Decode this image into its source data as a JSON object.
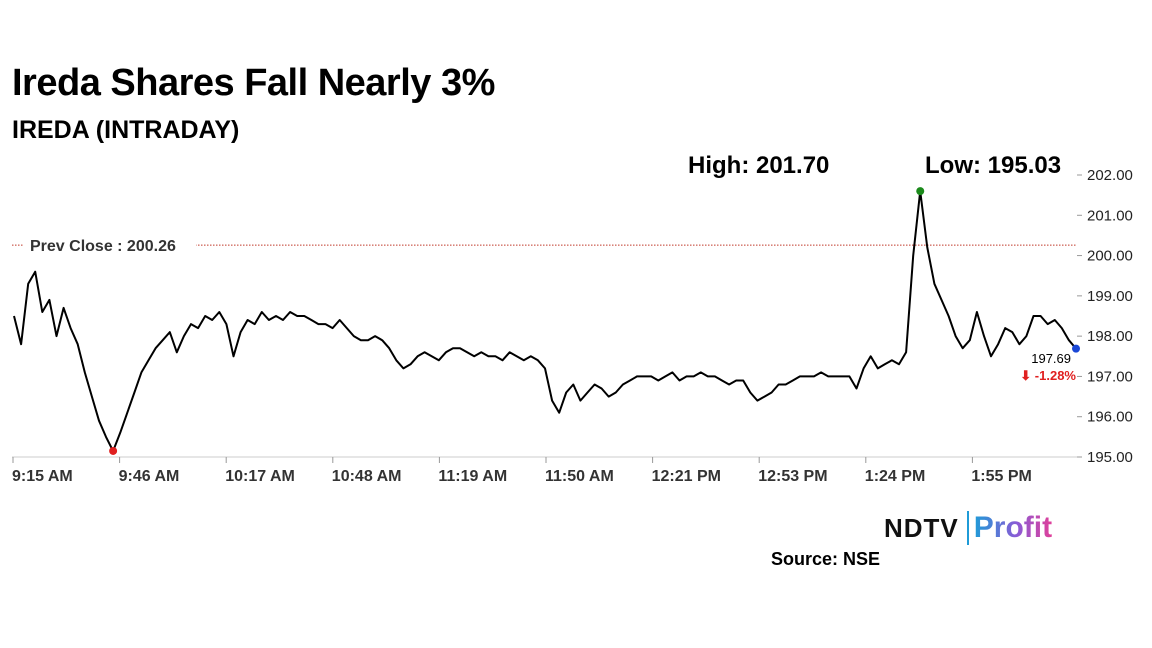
{
  "header": {
    "title": "Ireda Shares Fall Nearly 3%",
    "subtitle": "IREDA (INTRADAY)",
    "high_label": "High: 201.70",
    "low_label": "Low: 195.03"
  },
  "chart_data": {
    "type": "line",
    "ylim": [
      195.0,
      202.0
    ],
    "yticks": [
      "202.00",
      "201.00",
      "200.00",
      "199.00",
      "198.00",
      "197.00",
      "196.00",
      "195.00"
    ],
    "xticks": [
      "9:15 AM",
      "9:46 AM",
      "10:17 AM",
      "10:48 AM",
      "11:19 AM",
      "11:50 AM",
      "12:21 PM",
      "12:53 PM",
      "1:24 PM",
      "1:55 PM"
    ],
    "prev_close": 200.26,
    "prev_close_label": "Prev Close : 200.26",
    "last_price": "197.69",
    "change": "-1.28%",
    "change_arrow": "⬇",
    "colors": {
      "line": "#000000",
      "prev_close": "#c0392b",
      "high_marker": "#1b8a1b",
      "low_marker": "#e02020",
      "last_marker": "#1a47d6",
      "change": "#e02020"
    },
    "series": [
      {
        "values": [
          198.5,
          197.8,
          199.3,
          199.6,
          198.6,
          198.9,
          198.0,
          198.7,
          198.2,
          197.8,
          197.1,
          196.5,
          195.9,
          195.5,
          195.15,
          195.6,
          196.1,
          196.6,
          197.1,
          197.4,
          197.7,
          197.9,
          198.1,
          197.6,
          198.0,
          198.3,
          198.2,
          198.5,
          198.4,
          198.6,
          198.3,
          197.5,
          198.1,
          198.4,
          198.3,
          198.6,
          198.4,
          198.5,
          198.4,
          198.6,
          198.5,
          198.5,
          198.4,
          198.3,
          198.3,
          198.2,
          198.4,
          198.2,
          198.0,
          197.9,
          197.9,
          198.0,
          197.9,
          197.7,
          197.4,
          197.2,
          197.3,
          197.5,
          197.6,
          197.5,
          197.4,
          197.6,
          197.7,
          197.7,
          197.6,
          197.5,
          197.6,
          197.5,
          197.5,
          197.4,
          197.6,
          197.5,
          197.4,
          197.5,
          197.4,
          197.2,
          196.4,
          196.1,
          196.6,
          196.8,
          196.4,
          196.6,
          196.8,
          196.7,
          196.5,
          196.6,
          196.8,
          196.9,
          197.0,
          197.0,
          197.0,
          196.9,
          197.0,
          197.1,
          196.9,
          197.0,
          197.0,
          197.1,
          197.0,
          197.0,
          196.9,
          196.8,
          196.9,
          196.9,
          196.6,
          196.4,
          196.5,
          196.6,
          196.8,
          196.8,
          196.9,
          197.0,
          197.0,
          197.0,
          197.1,
          197.0,
          197.0,
          197.0,
          197.0,
          196.7,
          197.2,
          197.5,
          197.2,
          197.3,
          197.4,
          197.3,
          197.6,
          200.0,
          201.6,
          200.2,
          199.3,
          198.9,
          198.5,
          198.0,
          197.7,
          197.9,
          198.6,
          198.0,
          197.5,
          197.8,
          198.2,
          198.1,
          197.8,
          198.0,
          198.5,
          198.5,
          198.3,
          198.4,
          198.2,
          197.9,
          197.69
        ]
      }
    ]
  },
  "footer": {
    "logo_primary": "NDTV",
    "logo_secondary": "Profit",
    "source": "Source: NSE"
  }
}
